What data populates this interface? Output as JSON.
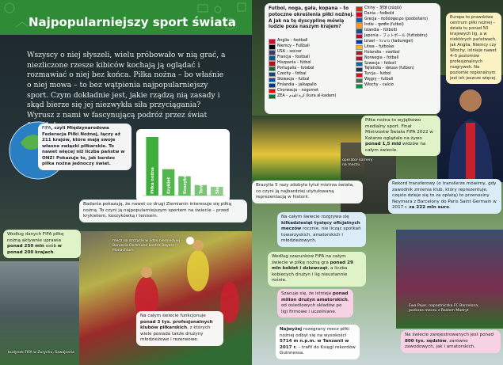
{
  "header": {
    "title": "Najpopularniejszy sport świata"
  },
  "intro": "Wszyscy o niej słyszeli, wielu próbowało w nią grać, a niezliczone rzesze kibiców kochają ją oglądać i rozmawiać o niej bez końca. Piłka nożna – bo właśnie o niej mowa – to bez wątpienia najpopularniejszy sport. Czym dokładnie jest, jakie rządzą nią zasady i skąd bierze się jej niezwykła siła przyciągania? Wyrusz z nami w fascynującą podróż przez świat futbolu!",
  "fifa_box": [
    "FIFA",
    ", czyli Międzynarodowa Federacja Piłki Nożnej, łączy aż 211 krajów, które mają swoje własne związki piłkarskie. To nawet więcej niż liczba państw w ONZ! Pokazuje to, jak bardzo piłka nożna jednoczy świat."
  ],
  "popularity_chart": {
    "categories": [
      "Piłka nożna",
      "Krykiet",
      "Koszykówka",
      "Tenis",
      "Siatkówka"
    ],
    "values": [
      100,
      45,
      33,
      18,
      15
    ],
    "color": "#3fae3a"
  },
  "survey_box": [
    "Badania pokazują, że nawet co drugi Ziemianin interesuje się piłką nożną. To czyni ją najpopularniejszym sportem na świecie – przed krykietem, koszykówką i tenisem."
  ],
  "players_box": [
    "Według danych FIFA piłkę nożną aktywnie uprawia ",
    "ponad 250 mln",
    " osób ",
    "w ponad 200 krajach",
    "."
  ],
  "match_caption": "mecz na szczycie w lidze niemieckiej – Borussia Dortmund kontra Bayern Monachium",
  "fifa_building_caption": "budynek FIFA w Zurychu, Szwajcaria",
  "clubs_box": [
    "Na całym świecie funkcjonuje ",
    "ponad 3 tys. profesjonalnych klubów piłkarskich",
    ", z których wiele posiada także drużyny młodzieżowe i rezerwowe."
  ],
  "names_box": {
    "intro": "Futbol, noga, gała, kopana – to potoczne określenia piłki nożnej. A jak na tę dyscyplinę mówią ludzie poza naszym krajem?",
    "left": [
      "Anglia – football",
      "Niemcy – Fußball",
      "USA – soccer",
      "Francja – football",
      "Hiszpania – fútbol",
      "Portugalia – futebol",
      "Czechy – fotbal",
      "Słowacja – futbal",
      "Finlandia – jalkapallo",
      "Chorwacja – nogomet",
      "ZEA – كرة القدم (kura al-kadam)"
    ],
    "right": [
      "Chiny – 足球 (zúqiú)",
      "Dania – fodbold",
      "Grecja – ποδόσφαιρο (podósfairo)",
      "Indie – फ़ुटबॉल (futbol)",
      "Islandia – fótbolti",
      "Japonia – フットボール (futtobōru)",
      "Izrael – כדורגל (kaduregel)",
      "Litwa – futbolas",
      "Holandia – voetbal",
      "Norwegia – fotball",
      "Szwecja – fotboll",
      "Tajlandia – ฟุตบอล (futbon)",
      "Turcja – futbol",
      "Węgry – futball",
      "Włochy – calcio"
    ]
  },
  "europe_box": [
    "Europa to prawdziwe centrum piłki nożnej – działa tu ponad 50 krajowych lig, a w niektórych państwach, jak Anglia, Niemcy czy Włochy, istnieje nawet 4–5 poziomów profesjonalnych rozgrywek. Na poziomie regionalnym jest ich jeszcze więcej."
  ],
  "media_box": [
    "Piłka nożna to wyjątkowo medialny sport. Finał Mistrzostw Świata FIFA 2022 w Katarze oglądało na żywo ",
    "ponad 1,5 mld",
    " widzów na całym świecie."
  ],
  "camera_caption": "operator kamery na meczu",
  "brazil_box": [
    "Brazylia 5 razy zdobyła tytuł mistrza świata, co czyni ją najbardziej utytułowaną reprezentacją w historii."
  ],
  "transfer_box": [
    "Rekord transferowy (o transferze mówimy, gdy zawodnik zmienia klub, który reprezentuje, często dzieje się to za opłatą) to przenosiny Neymara z Barcelony do Paris Saint Germain w 2017 r. ",
    "za 222 mln euro",
    "."
  ],
  "matches_box": [
    "Na całym świecie rozgrywa się ",
    "kilkadziesiąt tysięcy oficjalnych meczów",
    " rocznie, nie licząc spotkań towarzyskich, amatorskich i młodzieżowych."
  ],
  "women_box": [
    "Według szacunków FIFA na całym świecie w piłkę nożną gra ",
    "ponad 29 mln kobiet i dziewcząt",
    ", a liczba kobiecych drużyn i lig nieustannie rośnie."
  ],
  "amateur_box": [
    "Szacuje się, że istnieje ",
    "ponad milion drużyn amatorskich",
    ", od osiedlowych składów po ligi firmowe i uczelniane."
  ],
  "altitude_box": [
    "",
    "Najwyżej",
    " rozegrany mecz piłki nożnej odbył się na wysokości ",
    "5714 m n.p.m. w Tanzanii w 2017 r.",
    " – trafił do Księgi rekordów Guinnessa."
  ],
  "pajor_caption": "Ewa Pajor, napastniczka FC Barcelona, podczas meczu z Realem Madryt",
  "referees_box": [
    "Na świecie zarejestrowanych jest ponad ",
    "800 tys. sędziów",
    ", zarówno zawodowych, jak i amatorskich."
  ]
}
